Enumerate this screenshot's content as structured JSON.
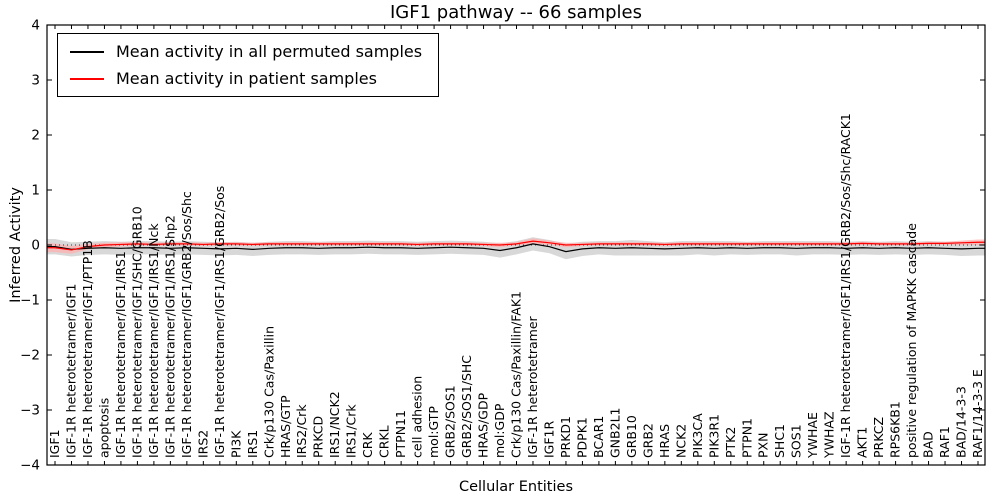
{
  "chart_data": {
    "type": "line",
    "title": "IGF1 pathway -- 66 samples",
    "xlabel": "Cellular Entities",
    "ylabel": "Inferred Activity",
    "ylim": [
      -4,
      4
    ],
    "yticks": [
      -4,
      -3,
      -2,
      -1,
      0,
      1,
      2,
      3,
      4
    ],
    "grid": false,
    "legend_position": "upper left",
    "frame_color": "#000000",
    "background_color": "#ffffff",
    "categories": [
      "IGF1",
      "IGF-1R heterotetramer/IGF1",
      "IGF-1R heterotetramer/IGF1/PTP1B",
      "apoptosis",
      "IGF-1R heterotetramer/IGF1/IRS1",
      "IGF-1R heterotetramer/IGF1/SHC/GRB10",
      "IGF-1R heterotetramer/IGF1/IRS1/Nck",
      "IGF-1R heterotetramer/IGF1/IRS1/Shp2",
      "IGF-1R heterotetramer/IGF1/GRB2/Sos/Shc",
      "IRS2",
      "IGF-1R heterotetramer/IGF1/IRS1/GRB2/Sos",
      "PI3K",
      "IRS1",
      "Crk/p130 Cas/Paxillin",
      "HRAS/GTP",
      "IRS2/Crk",
      "PRKCD",
      "IRS1/NCK2",
      "IRS1/Crk",
      "CRK",
      "CRKL",
      "PTPN11",
      "cell adhesion",
      "mol:GTP",
      "GRB2/SOS1",
      "GRB2/SOS1/SHC",
      "HRAS/GDP",
      "mol:GDP",
      "Crk/p130 Cas/Paxillin/FAK1",
      "IGF-1R heterotetramer",
      "IGF1R",
      "PRKD1",
      "PDPK1",
      "BCAR1",
      "GNB2L1",
      "GRB10",
      "GRB2",
      "HRAS",
      "NCK2",
      "PIK3CA",
      "PIK3R1",
      "PTK2",
      "PTPN1",
      "PXN",
      "SHC1",
      "SOS1",
      "YWHAE",
      "YWHAZ",
      "IGF-1R heterotetramer/IGF1/IRS1/GRB2/Sos/Shc/RACK1",
      "AKT1",
      "PRKCZ",
      "RPS6KB1",
      "positive regulation of MAPKK cascade",
      "BAD",
      "RAF1",
      "BAD/14-3-3",
      "RAF1/14-3-3 E"
    ],
    "series": [
      {
        "name": "Mean activity in all permuted samples",
        "color": "#000000",
        "band_color": "#d4d4d4",
        "band_opacity": 0.9,
        "values": [
          -0.03,
          -0.08,
          -0.06,
          -0.05,
          -0.06,
          -0.05,
          -0.05,
          -0.06,
          -0.05,
          -0.06,
          -0.07,
          -0.06,
          -0.08,
          -0.06,
          -0.05,
          -0.05,
          -0.06,
          -0.05,
          -0.05,
          -0.04,
          -0.05,
          -0.05,
          -0.06,
          -0.05,
          -0.04,
          -0.05,
          -0.06,
          -0.1,
          -0.05,
          0.02,
          -0.03,
          -0.12,
          -0.07,
          -0.05,
          -0.06,
          -0.05,
          -0.06,
          -0.07,
          -0.06,
          -0.05,
          -0.06,
          -0.05,
          -0.06,
          -0.05,
          -0.05,
          -0.06,
          -0.05,
          -0.05,
          -0.06,
          -0.05,
          -0.06,
          -0.05,
          -0.06,
          -0.05,
          -0.06,
          -0.07,
          -0.06
        ],
        "band": [
          0.14,
          0.13,
          0.12,
          0.12,
          0.12,
          0.12,
          0.12,
          0.12,
          0.12,
          0.12,
          0.12,
          0.12,
          0.12,
          0.12,
          0.12,
          0.12,
          0.12,
          0.12,
          0.12,
          0.12,
          0.12,
          0.12,
          0.12,
          0.12,
          0.12,
          0.12,
          0.12,
          0.13,
          0.12,
          0.12,
          0.12,
          0.14,
          0.13,
          0.12,
          0.13,
          0.14,
          0.13,
          0.12,
          0.13,
          0.12,
          0.13,
          0.12,
          0.12,
          0.12,
          0.12,
          0.13,
          0.12,
          0.12,
          0.12,
          0.12,
          0.12,
          0.12,
          0.12,
          0.12,
          0.12,
          0.13,
          0.13
        ]
      },
      {
        "name": "Mean activity in patient samples",
        "color": "#ff0000",
        "band_color": "#ffb0b0",
        "band_opacity": 0.75,
        "values": [
          -0.05,
          -0.09,
          -0.03,
          0.0,
          0.01,
          0.02,
          0.01,
          0.02,
          0.02,
          0.01,
          0.02,
          0.02,
          0.01,
          0.02,
          0.02,
          0.02,
          0.02,
          0.02,
          0.02,
          0.02,
          0.02,
          0.02,
          0.01,
          0.02,
          0.02,
          0.02,
          0.01,
          0.0,
          0.02,
          0.07,
          0.04,
          0.0,
          0.01,
          0.02,
          0.02,
          0.02,
          0.02,
          0.01,
          0.02,
          0.02,
          0.02,
          0.02,
          0.02,
          0.02,
          0.02,
          0.02,
          0.02,
          0.02,
          0.02,
          0.03,
          0.02,
          0.02,
          0.02,
          0.03,
          0.03,
          0.04,
          0.05
        ],
        "band": [
          0.08,
          0.07,
          0.05,
          0.04,
          0.04,
          0.03,
          0.03,
          0.03,
          0.03,
          0.03,
          0.03,
          0.03,
          0.03,
          0.03,
          0.03,
          0.03,
          0.03,
          0.03,
          0.03,
          0.03,
          0.03,
          0.03,
          0.03,
          0.03,
          0.03,
          0.03,
          0.03,
          0.04,
          0.03,
          0.05,
          0.04,
          0.04,
          0.03,
          0.03,
          0.03,
          0.03,
          0.03,
          0.03,
          0.03,
          0.03,
          0.03,
          0.03,
          0.03,
          0.03,
          0.03,
          0.03,
          0.03,
          0.03,
          0.03,
          0.03,
          0.03,
          0.03,
          0.03,
          0.03,
          0.03,
          0.04,
          0.05
        ]
      }
    ]
  }
}
